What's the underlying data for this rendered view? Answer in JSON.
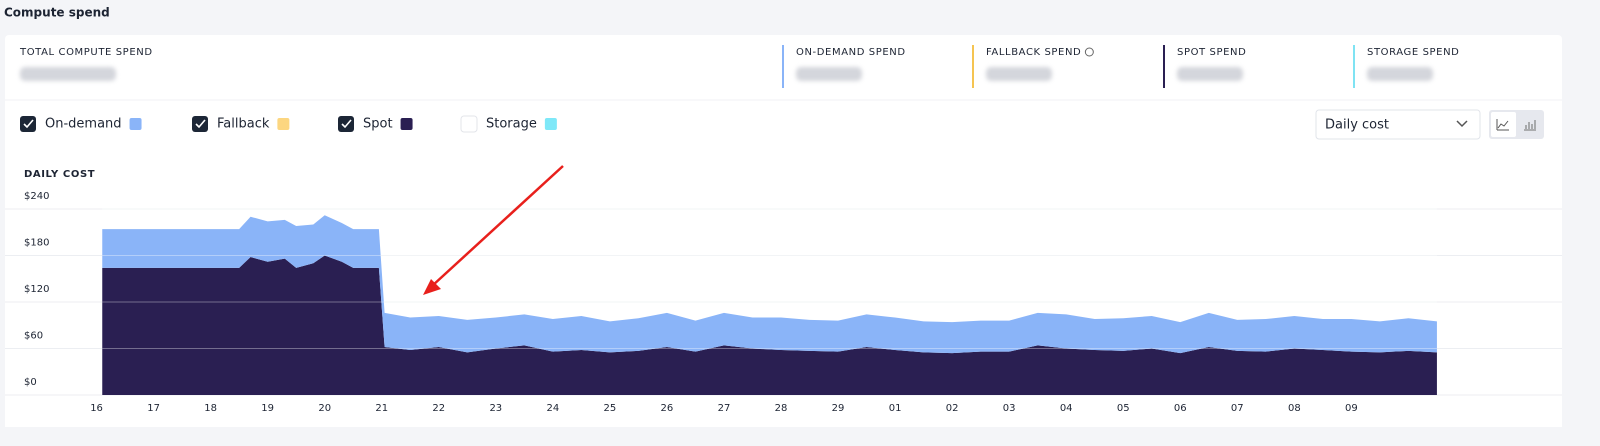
{
  "header": {
    "title": "Compute spend"
  },
  "metrics": [
    {
      "label": "TOTAL COMPUTE SPEND"
    },
    {
      "label": "ON-DEMAND SPEND",
      "color": "#8ab4f8"
    },
    {
      "label": "FALLBACK SPEND",
      "color": "#f5c451"
    },
    {
      "label": "SPOT SPEND",
      "color": "#2a1f52"
    },
    {
      "label": "STORAGE SPEND",
      "color": "#7fe3f3"
    }
  ],
  "dropdown": "Daily cost",
  "chart_data": {
    "type": "area",
    "title": "DAILY COST",
    "stacked": true,
    "grid": true,
    "x": [
      0.1,
      0.5,
      1,
      1.5,
      2,
      2.5,
      2.7,
      3,
      3.3,
      3.5,
      3.8,
      4,
      4.3,
      4.5,
      4.95,
      5.05,
      5.5,
      6,
      6.5,
      7,
      7.5,
      8,
      8.5,
      9,
      9.5,
      10,
      10.5,
      11,
      11.5,
      12,
      12.5,
      13,
      13.5,
      14,
      14.5,
      15,
      15.5,
      16,
      16.5,
      17,
      17.5,
      18,
      18.5,
      19,
      19.5,
      20,
      20.5,
      21,
      21.5,
      22,
      22.5,
      23,
      23.5
    ],
    "xlim": [
      -1.5,
      25.5
    ],
    "xticks": [
      {
        "value": 0,
        "label": "16"
      },
      {
        "value": 1,
        "label": "17"
      },
      {
        "value": 2,
        "label": "18"
      },
      {
        "value": 3,
        "label": "19"
      },
      {
        "value": 4,
        "label": "20"
      },
      {
        "value": 5,
        "label": "21"
      },
      {
        "value": 6,
        "label": "22"
      },
      {
        "value": 7,
        "label": "23"
      },
      {
        "value": 8,
        "label": "24"
      },
      {
        "value": 9,
        "label": "25"
      },
      {
        "value": 10,
        "label": "26"
      },
      {
        "value": 11,
        "label": "27"
      },
      {
        "value": 12,
        "label": "28"
      },
      {
        "value": 13,
        "label": "29"
      },
      {
        "value": 14,
        "label": "01"
      },
      {
        "value": 15,
        "label": "02"
      },
      {
        "value": 16,
        "label": "03"
      },
      {
        "value": 17,
        "label": "04"
      },
      {
        "value": 18,
        "label": "05"
      },
      {
        "value": 19,
        "label": "06"
      },
      {
        "value": 20,
        "label": "07"
      },
      {
        "value": 21,
        "label": "08"
      },
      {
        "value": 22,
        "label": "09"
      }
    ],
    "ylim": [
      0,
      240
    ],
    "yticks": [
      {
        "value": 0,
        "label": "$0"
      },
      {
        "value": 60,
        "label": "$60"
      },
      {
        "value": 120,
        "label": "$120"
      },
      {
        "value": 180,
        "label": "$180"
      },
      {
        "value": 240,
        "label": "$240"
      }
    ],
    "series": [
      {
        "name": "On-demand",
        "color": "#8ab4f8",
        "checked": true,
        "values": [
          50,
          50,
          50,
          50,
          50,
          50,
          52,
          52,
          50,
          54,
          50,
          52,
          50,
          50,
          50,
          44,
          42,
          40,
          42,
          40,
          40,
          42,
          44,
          40,
          42,
          44,
          40,
          42,
          40,
          42,
          40,
          40,
          42,
          42,
          40,
          40,
          40,
          40,
          42,
          44,
          40,
          42,
          42,
          40,
          44,
          40,
          42,
          42,
          40,
          42,
          40,
          42,
          40
        ]
      },
      {
        "name": "Fallback",
        "color": "#fcd680",
        "checked": true
      },
      {
        "name": "Spot",
        "color": "#2a1f52",
        "checked": true,
        "values": [
          164,
          164,
          164,
          164,
          164,
          164,
          178,
          172,
          176,
          164,
          170,
          180,
          172,
          164,
          164,
          62,
          58,
          62,
          55,
          60,
          64,
          56,
          58,
          55,
          57,
          62,
          56,
          64,
          60,
          58,
          57,
          56,
          62,
          58,
          55,
          54,
          56,
          56,
          64,
          60,
          58,
          57,
          60,
          54,
          62,
          57,
          56,
          60,
          58,
          56,
          55,
          57,
          55
        ]
      },
      {
        "name": "Storage",
        "color": "#7ee8f8",
        "checked": false
      }
    ]
  }
}
